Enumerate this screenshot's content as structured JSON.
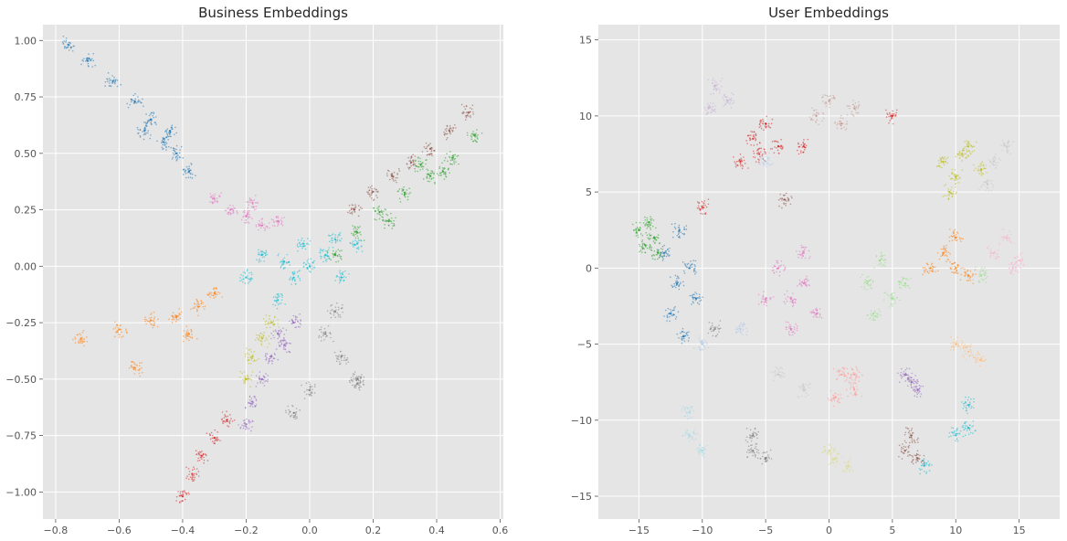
{
  "chart_data": [
    {
      "type": "scatter",
      "title": "Business Embeddings",
      "xlabel": "",
      "ylabel": "",
      "xlim": [
        -0.84,
        0.61
      ],
      "ylim": [
        -1.12,
        1.07
      ],
      "xticks": [
        -0.8,
        -0.6,
        -0.4,
        -0.2,
        0.0,
        0.2,
        0.4,
        0.6
      ],
      "xtick_labels": [
        "−0.8",
        "−0.6",
        "−0.4",
        "−0.2",
        "0.0",
        "0.2",
        "0.4",
        "0.6"
      ],
      "yticks": [
        -1.0,
        -0.75,
        -0.5,
        -0.25,
        0.0,
        0.25,
        0.5,
        0.75,
        1.0
      ],
      "ytick_labels": [
        "−1.00",
        "−0.75",
        "−0.50",
        "−0.25",
        "0.00",
        "0.25",
        "0.50",
        "0.75",
        "1.00"
      ],
      "grid": true,
      "legend": "none",
      "background": "#e5e5e5",
      "clusters": [
        {
          "color": "#1f77b4",
          "points": [
            [
              -0.76,
              0.98
            ],
            [
              -0.7,
              0.91
            ],
            [
              -0.62,
              0.82
            ],
            [
              -0.55,
              0.73
            ],
            [
              -0.5,
              0.65
            ],
            [
              -0.46,
              0.55
            ],
            [
              -0.42,
              0.5
            ],
            [
              -0.38,
              0.42
            ],
            [
              -0.52,
              0.6
            ],
            [
              -0.44,
              0.6
            ]
          ]
        },
        {
          "color": "#2ca02c",
          "points": [
            [
              0.52,
              0.58
            ],
            [
              0.45,
              0.48
            ],
            [
              0.38,
              0.4
            ],
            [
              0.3,
              0.32
            ],
            [
              0.22,
              0.24
            ],
            [
              0.15,
              0.15
            ],
            [
              0.08,
              0.05
            ],
            [
              0.35,
              0.45
            ],
            [
              0.25,
              0.2
            ],
            [
              0.42,
              0.42
            ]
          ]
        },
        {
          "color": "#8c564b",
          "points": [
            [
              0.5,
              0.68
            ],
            [
              0.44,
              0.6
            ],
            [
              0.38,
              0.52
            ],
            [
              0.32,
              0.46
            ],
            [
              0.26,
              0.4
            ],
            [
              0.2,
              0.33
            ],
            [
              0.14,
              0.25
            ]
          ]
        },
        {
          "color": "#17becf",
          "points": [
            [
              0.0,
              0.0
            ],
            [
              -0.05,
              -0.05
            ],
            [
              0.05,
              0.05
            ],
            [
              -0.1,
              -0.15
            ],
            [
              0.08,
              0.12
            ],
            [
              -0.15,
              0.05
            ],
            [
              0.1,
              -0.05
            ],
            [
              -0.02,
              0.1
            ],
            [
              -0.2,
              -0.05
            ],
            [
              0.15,
              0.1
            ],
            [
              -0.08,
              0.02
            ]
          ]
        },
        {
          "color": "#e377c2",
          "points": [
            [
              -0.25,
              0.25
            ],
            [
              -0.2,
              0.22
            ],
            [
              -0.15,
              0.18
            ],
            [
              -0.3,
              0.3
            ],
            [
              -0.1,
              0.2
            ],
            [
              -0.18,
              0.28
            ]
          ]
        },
        {
          "color": "#ff7f0e",
          "points": [
            [
              -0.72,
              -0.32
            ],
            [
              -0.6,
              -0.28
            ],
            [
              -0.5,
              -0.24
            ],
            [
              -0.42,
              -0.22
            ],
            [
              -0.35,
              -0.18
            ],
            [
              -0.3,
              -0.12
            ],
            [
              -0.55,
              -0.45
            ],
            [
              -0.38,
              -0.3
            ]
          ]
        },
        {
          "color": "#9467bd",
          "points": [
            [
              -0.1,
              -0.3
            ],
            [
              -0.12,
              -0.4
            ],
            [
              -0.15,
              -0.5
            ],
            [
              -0.18,
              -0.6
            ],
            [
              -0.08,
              -0.35
            ],
            [
              -0.2,
              -0.7
            ],
            [
              -0.05,
              -0.25
            ]
          ]
        },
        {
          "color": "#d62728",
          "points": [
            [
              -0.4,
              -1.02
            ],
            [
              -0.37,
              -0.92
            ],
            [
              -0.34,
              -0.84
            ],
            [
              -0.3,
              -0.76
            ],
            [
              -0.26,
              -0.68
            ]
          ]
        },
        {
          "color": "#bcbd22",
          "points": [
            [
              -0.18,
              -0.4
            ],
            [
              -0.15,
              -0.32
            ],
            [
              -0.2,
              -0.5
            ],
            [
              -0.12,
              -0.25
            ]
          ]
        },
        {
          "color": "#7f7f7f",
          "points": [
            [
              0.05,
              -0.3
            ],
            [
              0.1,
              -0.4
            ],
            [
              0.15,
              -0.5
            ],
            [
              0.0,
              -0.55
            ],
            [
              -0.05,
              -0.65
            ],
            [
              0.08,
              -0.2
            ],
            [
              0.15,
              -0.52
            ]
          ]
        }
      ]
    },
    {
      "type": "scatter",
      "title": "User Embeddings",
      "xlabel": "",
      "ylabel": "",
      "xlim": [
        -18.2,
        18.2
      ],
      "ylim": [
        -16.5,
        16.0
      ],
      "xticks": [
        -15,
        -10,
        -5,
        0,
        5,
        10,
        15
      ],
      "xtick_labels": [
        "−15",
        "−10",
        "−5",
        "0",
        "5",
        "10",
        "15"
      ],
      "yticks": [
        -15,
        -10,
        -5,
        0,
        5,
        10,
        15
      ],
      "ytick_labels": [
        "−15",
        "−10",
        "−5",
        "0",
        "5",
        "10",
        "15"
      ],
      "grid": true,
      "legend": "none",
      "background": "#e5e5e5",
      "clusters": [
        {
          "color": "#2ca02c",
          "points": [
            [
              -15,
              2.5
            ],
            [
              -14.5,
              1.5
            ],
            [
              -13.8,
              2.0
            ],
            [
              -14.2,
              3.0
            ],
            [
              -13.5,
              1.0
            ]
          ]
        },
        {
          "color": "#1f77b4",
          "points": [
            [
              -12,
              -1.0
            ],
            [
              -11,
              0.0
            ],
            [
              -12.5,
              -3.0
            ],
            [
              -11.5,
              -4.5
            ],
            [
              -10.5,
              -2.0
            ],
            [
              -13,
              1.0
            ],
            [
              -11.8,
              2.5
            ]
          ]
        },
        {
          "color": "#d62728",
          "points": [
            [
              -6,
              8.5
            ],
            [
              -5,
              9.5
            ],
            [
              -7,
              7.0
            ],
            [
              -4,
              8.0
            ],
            [
              -10,
              4.0
            ],
            [
              -5.5,
              7.5
            ],
            [
              -2,
              8.0
            ],
            [
              5,
              10.0
            ]
          ]
        },
        {
          "color": "#c5b0d5",
          "points": [
            [
              -9,
              12.0
            ],
            [
              -8,
              11.0
            ],
            [
              -9.5,
              10.5
            ]
          ]
        },
        {
          "color": "#c49c94",
          "points": [
            [
              -1,
              10.0
            ],
            [
              0,
              11.0
            ],
            [
              1,
              9.5
            ],
            [
              2,
              10.5
            ]
          ]
        },
        {
          "color": "#bcbd22",
          "points": [
            [
              9,
              7.0
            ],
            [
              10,
              6.0
            ],
            [
              11,
              8.0
            ],
            [
              9.5,
              5.0
            ],
            [
              10.5,
              7.5
            ],
            [
              12,
              6.5
            ]
          ]
        },
        {
          "color": "#c7c7c7",
          "points": [
            [
              13,
              7.0
            ],
            [
              14,
              8.0
            ],
            [
              12.5,
              5.5
            ],
            [
              -2,
              -8.0
            ],
            [
              -4,
              -7.0
            ]
          ]
        },
        {
          "color": "#e377c2",
          "points": [
            [
              -3,
              -2.0
            ],
            [
              -2,
              -1.0
            ],
            [
              -4,
              0.0
            ],
            [
              -1,
              -3.0
            ],
            [
              -3,
              -4.0
            ],
            [
              -2,
              1.0
            ],
            [
              -5,
              -2.0
            ]
          ]
        },
        {
          "color": "#98df8a",
          "points": [
            [
              3,
              -1.0
            ],
            [
              4,
              0.5
            ],
            [
              5,
              -2.0
            ],
            [
              3.5,
              -3.0
            ],
            [
              6,
              -1.0
            ],
            [
              12,
              -0.5
            ]
          ]
        },
        {
          "color": "#ff7f0e",
          "points": [
            [
              8,
              0.0
            ],
            [
              9,
              1.0
            ],
            [
              10,
              0.0
            ],
            [
              11,
              -0.5
            ],
            [
              10,
              2.0
            ]
          ]
        },
        {
          "color": "#ffbb78",
          "points": [
            [
              10,
              -5.0
            ],
            [
              11,
              -5.5
            ],
            [
              12,
              -6.0
            ]
          ]
        },
        {
          "color": "#ff9896",
          "points": [
            [
              1,
              -7.0
            ],
            [
              2,
              -8.0
            ],
            [
              0.5,
              -8.5
            ],
            [
              2,
              -7.0
            ]
          ]
        },
        {
          "color": "#9467bd",
          "points": [
            [
              6,
              -7.0
            ],
            [
              7,
              -8.0
            ],
            [
              6.5,
              -7.5
            ]
          ]
        },
        {
          "color": "#8c564b",
          "points": [
            [
              6,
              -12.0
            ],
            [
              7,
              -12.5
            ],
            [
              -3.5,
              4.5
            ],
            [
              6.5,
              -11.0
            ]
          ]
        },
        {
          "color": "#17becf",
          "points": [
            [
              10,
              -11.0
            ],
            [
              11,
              -10.5
            ],
            [
              7.5,
              -13.0
            ],
            [
              11,
              -9.0
            ]
          ]
        },
        {
          "color": "#7f7f7f",
          "points": [
            [
              -6,
              -12.0
            ],
            [
              -5,
              -12.5
            ],
            [
              -6,
              -11.0
            ],
            [
              -9,
              -4.0
            ]
          ]
        },
        {
          "color": "#9edae5",
          "points": [
            [
              -11,
              -11.0
            ],
            [
              -10,
              -12.0
            ],
            [
              -11,
              -9.5
            ]
          ]
        },
        {
          "color": "#aec7e8",
          "points": [
            [
              -5,
              7.0
            ],
            [
              -7,
              -4.0
            ],
            [
              -10,
              -5.0
            ]
          ]
        },
        {
          "color": "#f7b6d2",
          "points": [
            [
              13,
              1.0
            ],
            [
              14,
              2.0
            ],
            [
              15,
              0.5
            ],
            [
              14.5,
              0.0
            ]
          ]
        },
        {
          "color": "#dbdb8d",
          "points": [
            [
              0.5,
              -12.5
            ],
            [
              1.5,
              -13.0
            ],
            [
              0.0,
              -12.0
            ]
          ]
        }
      ]
    }
  ]
}
